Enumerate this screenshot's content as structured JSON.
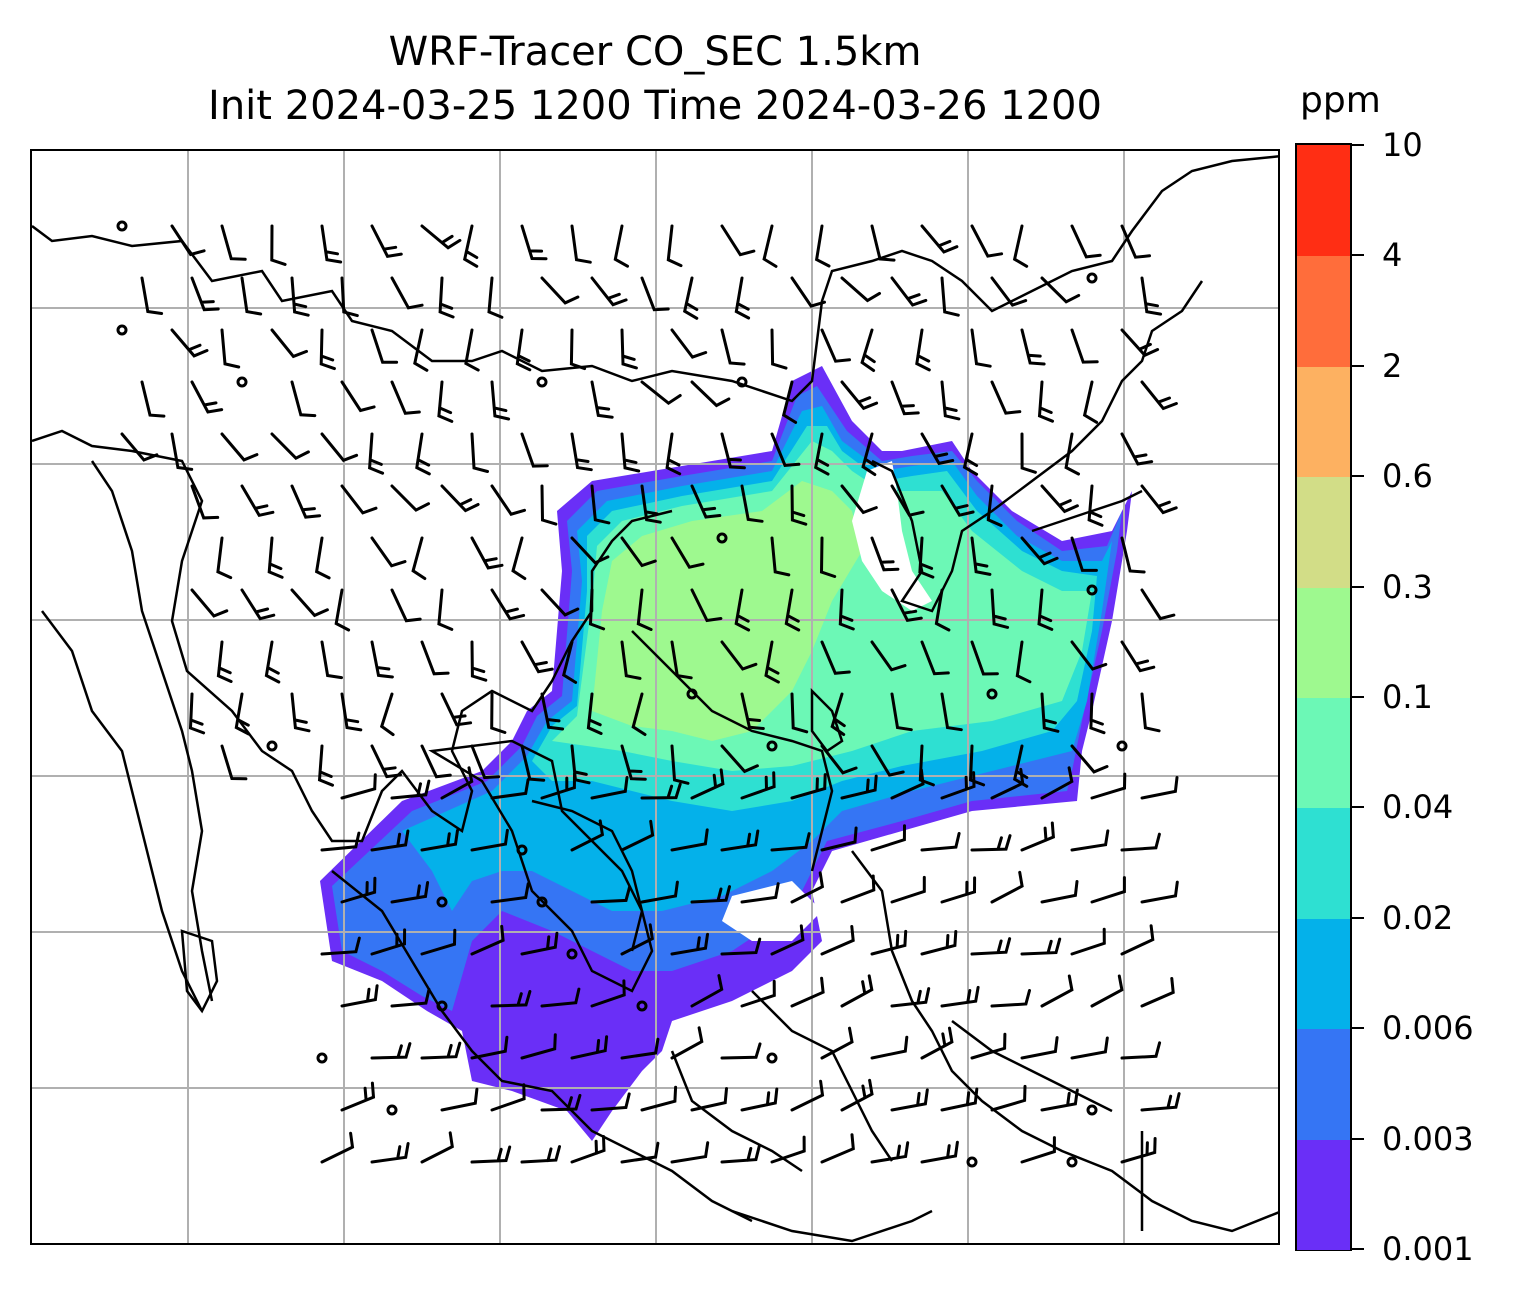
{
  "title": {
    "line1": "WRF-Tracer CO_SEC 1.5km",
    "line2": "Init 2024-03-25 1200 Time 2024-03-26 1200"
  },
  "colorbar": {
    "unit": "ppm",
    "levels": [
      "0.001",
      "0.003",
      "0.006",
      "0.02",
      "0.04",
      "0.1",
      "0.3",
      "0.6",
      "2",
      "4",
      "10"
    ],
    "colors": [
      "#6a2ff7",
      "#3575f4",
      "#04b1ea",
      "#2ee0d2",
      "#6cf8b6",
      "#9ef98f",
      "#d2dd87",
      "#fdb161",
      "#ff6d3b",
      "#ff2e14"
    ]
  },
  "chart_data": {
    "type": "heatmap",
    "title": "WRF-Tracer CO_SEC 1.5km",
    "subtitle": "Init 2024-03-25 1200 Time 2024-03-26 1200",
    "colorbar_label": "ppm",
    "colorbar_ticks": [
      0.001,
      0.003,
      0.006,
      0.02,
      0.04,
      0.1,
      0.3,
      0.6,
      2,
      4,
      10
    ],
    "gridlines": true,
    "overlays": [
      "coastlines",
      "wind-barbs"
    ]
  }
}
